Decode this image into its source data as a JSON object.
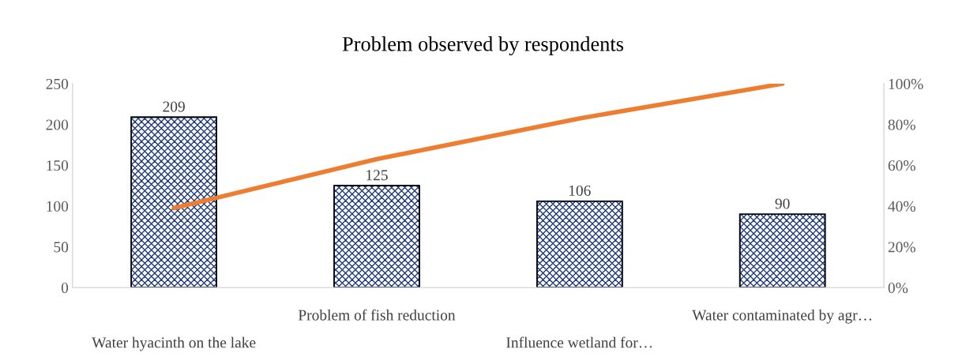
{
  "chart_data": {
    "type": "bar",
    "title": "Problem observed by respondents",
    "categories": [
      "Water hyacinth on the lake",
      "Problem of fish reduction",
      "Influence wetland for…",
      "Water contaminated by agr…"
    ],
    "series": [
      {
        "color": "#1f3a7a",
        "values": [
          209,
          125,
          106,
          90
        ],
        "value_labels": [
          "209",
          "125",
          "106",
          "90"
        ]
      },
      {
        "type": "line",
        "axis": "y2",
        "color": "#ed7d31",
        "values": [
          39,
          63,
          83,
          100
        ]
      }
    ],
    "ylim": [
      0,
      250
    ],
    "yticks": [
      0,
      50,
      100,
      150,
      200,
      250
    ],
    "y2lim": [
      0,
      100
    ],
    "y2ticks": [
      {
        "value": 0,
        "label": "0%"
      },
      {
        "value": 20,
        "label": "20%"
      },
      {
        "value": 40,
        "label": "40%"
      },
      {
        "value": 60,
        "label": "60%"
      },
      {
        "value": 80,
        "label": "80%"
      },
      {
        "value": 100,
        "label": "100%"
      }
    ],
    "grid": false,
    "marker": "none",
    "line_style": "solid"
  }
}
